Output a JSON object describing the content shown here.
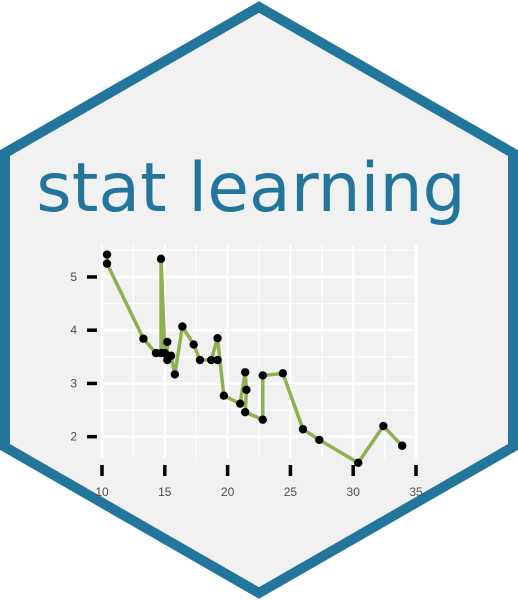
{
  "title": "stat learning",
  "colors": {
    "hex_border": "#22759B",
    "hex_fill": "#F1F1F2",
    "title": "#22759B",
    "line": "#8FB04F",
    "point": "#000000",
    "grid": "#FFFFFF",
    "tick": "#000000"
  },
  "chart_data": {
    "type": "line",
    "title": "",
    "xlabel": "",
    "ylabel": "",
    "xlim": [
      10,
      35
    ],
    "ylim": [
      1.6,
      5.6
    ],
    "grid": true,
    "legend": "none",
    "x_ticks": [
      10,
      15,
      20,
      25,
      30,
      35
    ],
    "y_ticks": [
      2,
      3,
      4,
      5
    ],
    "x_tick_labels": [
      "10",
      "15",
      "20",
      "25",
      "30",
      "35"
    ],
    "y_tick_labels": [
      "2",
      "3",
      "4",
      "5"
    ],
    "series": [
      {
        "x": [
          10.4,
          10.4,
          13.3,
          14.3,
          14.7,
          14.7,
          15.0,
          15.2,
          15.2,
          15.5,
          15.8,
          16.4,
          17.3,
          17.8,
          19.2,
          18.7,
          19.2,
          19.7,
          21.0,
          21.4,
          21.5,
          21.4,
          22.8,
          22.8,
          24.4,
          26.0,
          27.3,
          30.4,
          32.4,
          33.9
        ],
        "y": [
          5.42,
          5.25,
          3.84,
          3.57,
          3.57,
          5.34,
          3.57,
          3.78,
          3.44,
          3.52,
          3.17,
          4.07,
          3.73,
          3.44,
          3.44,
          3.44,
          3.85,
          2.77,
          2.62,
          3.21,
          2.88,
          2.46,
          2.32,
          3.15,
          3.19,
          2.14,
          1.94,
          1.51,
          2.2,
          1.83
        ]
      }
    ]
  }
}
